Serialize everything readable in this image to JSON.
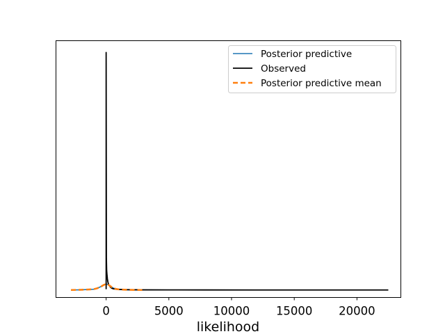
{
  "chart_data": {
    "type": "line",
    "title": "",
    "xlabel": "likelihood",
    "ylabel": "",
    "xlim": [
      -4000,
      23500
    ],
    "ylim": [
      -3e-05,
      0.001
    ],
    "xticks": [
      0,
      5000,
      10000,
      15000,
      20000
    ],
    "xtick_labels": [
      "0",
      "5000",
      "10000",
      "15000",
      "20000"
    ],
    "yticks_visible": false,
    "legend_position": "top-right",
    "series": [
      {
        "name": "Posterior predictive",
        "color": "#1f77b4",
        "style": "solid",
        "x": [
          -2800,
          -2200,
          -1600,
          -1000,
          -700,
          -400,
          -200,
          0,
          150,
          300,
          450,
          600,
          800,
          1000,
          1300,
          1600,
          2000,
          2500,
          3000
        ],
        "y": [
          0.0,
          5e-07,
          1.5e-06,
          3e-06,
          7e-06,
          1.4e-05,
          2e-05,
          2.4e-05,
          2.2e-05,
          1.7e-05,
          1.1e-05,
          7e-06,
          4e-06,
          2.5e-06,
          1.5e-06,
          8e-07,
          4e-07,
          1e-07,
          0.0
        ]
      },
      {
        "name": "Observed",
        "color": "#000000",
        "style": "solid",
        "x": [
          0,
          0,
          20,
          40,
          70,
          100,
          140,
          200,
          280,
          350,
          450,
          600,
          800,
          1000,
          1500,
          2000,
          3000,
          5000,
          8000,
          12000,
          16000,
          20000,
          22500
        ],
        "y": [
          3e-06,
          0.000953,
          0.00013,
          8e-05,
          6e-05,
          4.5e-05,
          3.2e-05,
          2.2e-05,
          1.6e-05,
          1.1e-05,
          7e-06,
          4.5e-06,
          3e-06,
          2.2e-06,
          1.4e-06,
          1e-06,
          6e-07,
          3e-07,
          2e-07,
          1e-07,
          1e-07,
          0.0,
          0.0
        ]
      },
      {
        "name": "Posterior predictive mean",
        "color": "#ff7f0e",
        "style": "dashed",
        "x": [
          -2800,
          -2200,
          -1600,
          -1000,
          -700,
          -400,
          -200,
          0,
          150,
          300,
          450,
          600,
          800,
          1000,
          1300,
          1600,
          2000,
          2500,
          3000
        ],
        "y": [
          0.0,
          5e-07,
          1.5e-06,
          3e-06,
          7e-06,
          1.4e-05,
          2e-05,
          2.4e-05,
          2.2e-05,
          1.7e-05,
          1.1e-05,
          7e-06,
          4e-06,
          2.5e-06,
          1.5e-06,
          8e-07,
          4e-07,
          1e-07,
          0.0
        ]
      }
    ]
  }
}
